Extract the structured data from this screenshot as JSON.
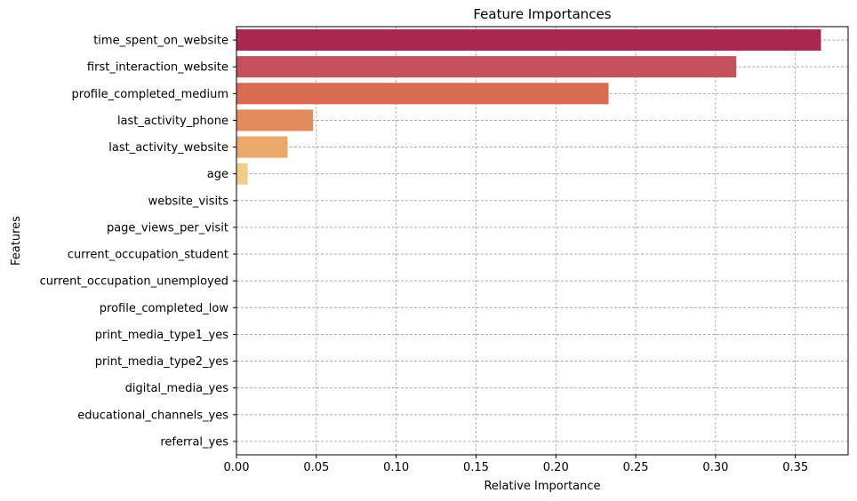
{
  "chart_data": {
    "type": "bar",
    "orientation": "horizontal",
    "title": "Feature Importances",
    "xlabel": "Relative Importance",
    "ylabel": "Features",
    "xlim": [
      0,
      0.383
    ],
    "xticks": [
      "0.00",
      "0.05",
      "0.10",
      "0.15",
      "0.20",
      "0.25",
      "0.30",
      "0.35"
    ],
    "xtick_values": [
      0,
      0.05,
      0.1,
      0.15,
      0.2,
      0.25,
      0.3,
      0.35
    ],
    "grid": true,
    "categories": [
      "time_spent_on_website",
      "first_interaction_website",
      "profile_completed_medium",
      "last_activity_phone",
      "last_activity_website",
      "age",
      "website_visits",
      "page_views_per_visit",
      "current_occupation_student",
      "current_occupation_unemployed",
      "profile_completed_low",
      "print_media_type1_yes",
      "print_media_type2_yes",
      "digital_media_yes",
      "educational_channels_yes",
      "referral_yes"
    ],
    "values": [
      0.366,
      0.313,
      0.233,
      0.048,
      0.032,
      0.007,
      0,
      0,
      0,
      0,
      0,
      0,
      0,
      0,
      0,
      0
    ],
    "colors": [
      "#a9284f",
      "#c4515b",
      "#da6b53",
      "#e38a5c",
      "#eaa96b",
      "#f1cd8a",
      "#f4d998",
      "#f6e3a6",
      "#f8ebb4",
      "#f9f0c0",
      "#fbf4cc",
      "#fcf7d6",
      "#fdf9de",
      "#fefbe6",
      "#fefcee",
      "#fffdf4"
    ]
  }
}
